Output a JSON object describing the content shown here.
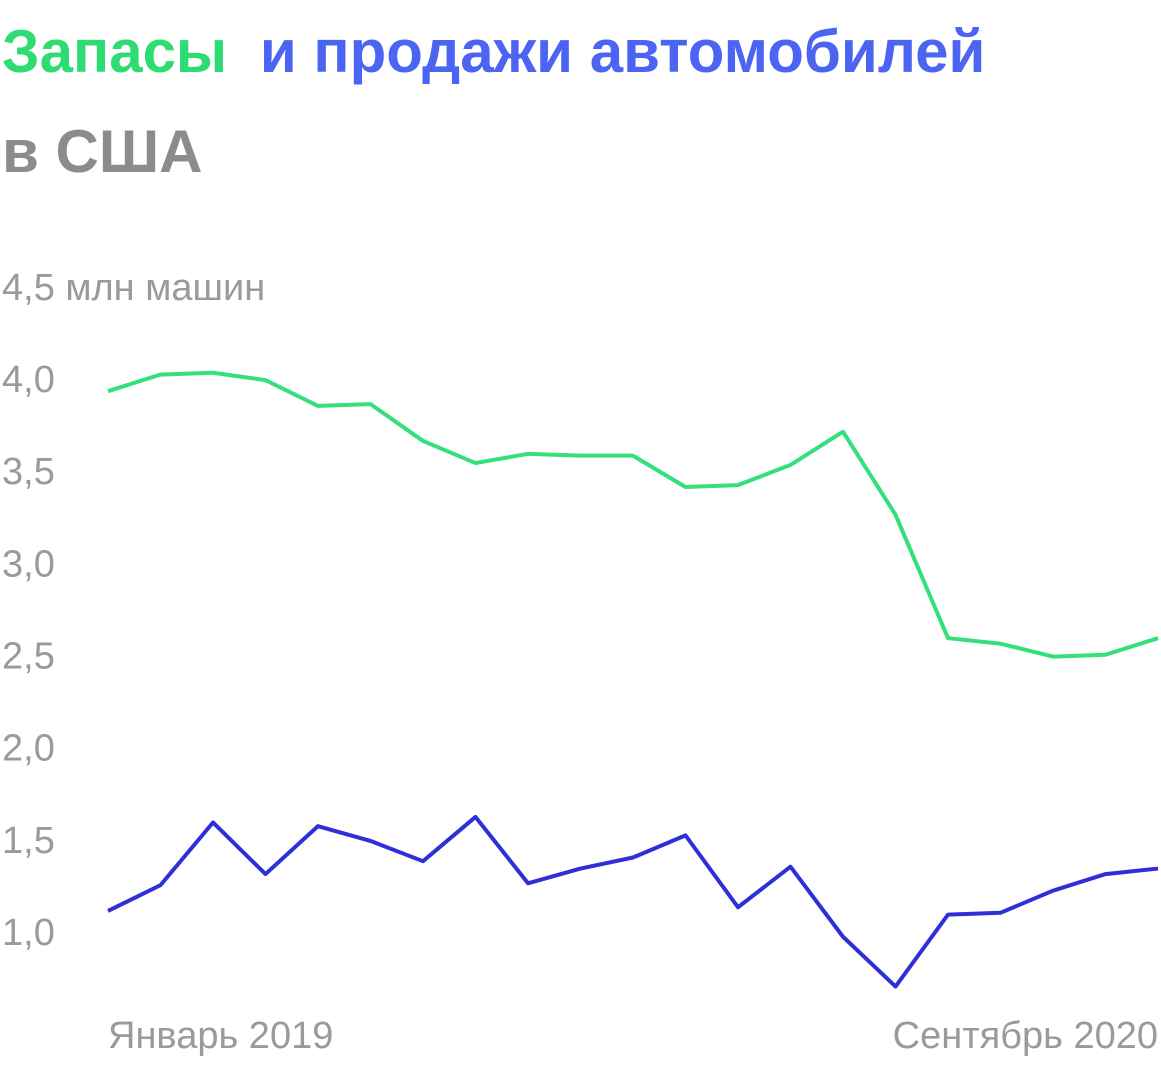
{
  "chart_data": {
    "type": "line",
    "title": [
      {
        "text": "Запасы",
        "color": "#2fdc74"
      },
      {
        "text": "и продажи автомобилей",
        "color": "#4b64f2"
      },
      {
        "text": "в США",
        "color": "#8c8c8c"
      }
    ],
    "categories": [
      "Январь 2019",
      null,
      null,
      null,
      null,
      null,
      null,
      null,
      null,
      null,
      null,
      null,
      null,
      null,
      null,
      null,
      null,
      null,
      null,
      null,
      "Сентябрь 2020"
    ],
    "series": [
      {
        "color": "#33e07a",
        "values": [
          3.95,
          4.04,
          4.05,
          4.01,
          3.87,
          3.88,
          3.68,
          3.56,
          3.61,
          3.6,
          3.6,
          3.43,
          3.44,
          3.55,
          3.73,
          3.28,
          2.61,
          2.58,
          2.51,
          2.52,
          2.61
        ]
      },
      {
        "color": "#2f2fd8",
        "values": [
          1.13,
          1.27,
          1.61,
          1.33,
          1.59,
          1.51,
          1.4,
          1.64,
          1.28,
          1.36,
          1.42,
          1.54,
          1.15,
          1.37,
          0.99,
          0.72,
          1.11,
          1.12,
          1.24,
          1.33,
          1.36
        ]
      }
    ],
    "ylim": [
      0.7,
      4.5
    ],
    "yticks": [
      {
        "value": 4.5,
        "label": "4,5 млн машин"
      },
      {
        "value": 4.0,
        "label": "4,0"
      },
      {
        "value": 3.5,
        "label": "3,5"
      },
      {
        "value": 3.0,
        "label": "3,0"
      },
      {
        "value": 2.5,
        "label": "2,5"
      },
      {
        "value": 2.0,
        "label": "2,0"
      },
      {
        "value": 1.5,
        "label": "1,5"
      },
      {
        "value": 1.0,
        "label": "1,0"
      }
    ],
    "grid": false
  }
}
